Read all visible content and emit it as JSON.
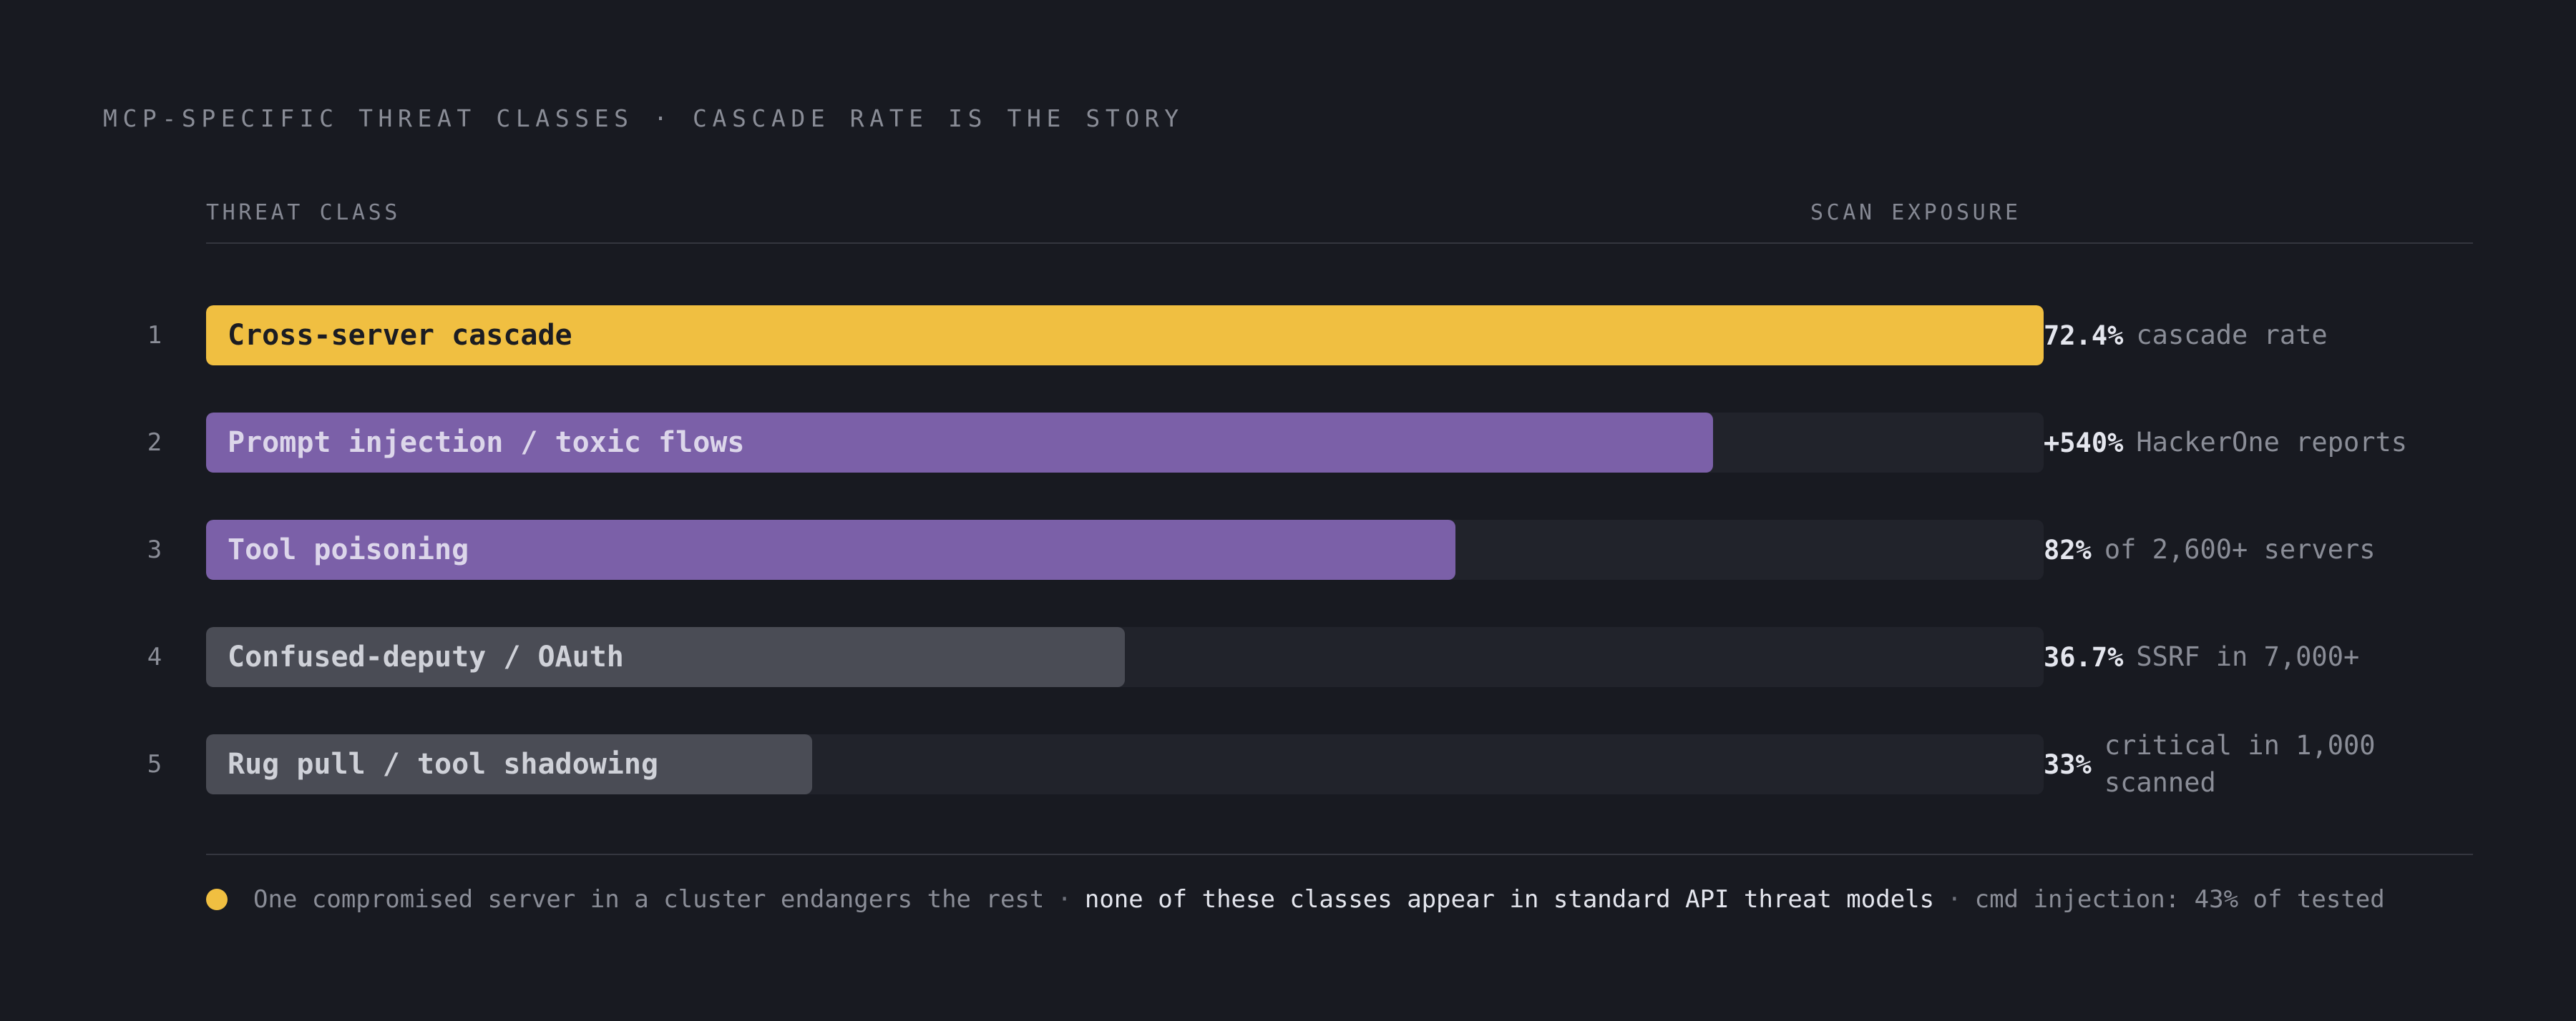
{
  "header": {
    "kicker": "MCP-SPECIFIC THREAT CLASSES · CASCADE RATE IS THE STORY",
    "col_left": "THREAT CLASS",
    "col_right": "SCAN EXPOSURE"
  },
  "colors": {
    "accent_yellow": "#f0bf41",
    "accent_purple": "#7b60a8",
    "neutral_gray": "#4a4c55",
    "track": "#21232b"
  },
  "chart_data": {
    "type": "bar",
    "orientation": "horizontal",
    "categories": [
      "Cross-server cascade",
      "Prompt injection / toxic flows",
      "Tool poisoning",
      "Confused-deputy / OAuth",
      "Rug pull / tool shadowing"
    ],
    "ranks": [
      "1",
      "2",
      "3",
      "4",
      "5"
    ],
    "relative_length": [
      1.0,
      0.82,
      0.68,
      0.5,
      0.33
    ],
    "bar_colors": [
      "#f0bf41",
      "#7b60a8",
      "#7b60a8",
      "#4a4c55",
      "#4a4c55"
    ],
    "label_colors": [
      "#1b1c22",
      "#dcd6ea",
      "#dcd6ea",
      "#cfd1d8",
      "#cfd1d8"
    ],
    "value_labels": [
      "72.4%",
      "+540%",
      "82%",
      "36.7%",
      "33%"
    ],
    "value_descriptions": [
      "cascade rate",
      "HackerOne reports",
      "of 2,600+ servers",
      "SSRF in 7,000+",
      "critical in 1,000 scanned"
    ],
    "grid": false,
    "legend": "none"
  },
  "footnote": {
    "part_a": "One compromised server in a cluster endangers the rest",
    "separator": "·",
    "part_b": "none of these classes appear in standard API threat models",
    "part_c": "cmd injection: 43% of tested"
  }
}
